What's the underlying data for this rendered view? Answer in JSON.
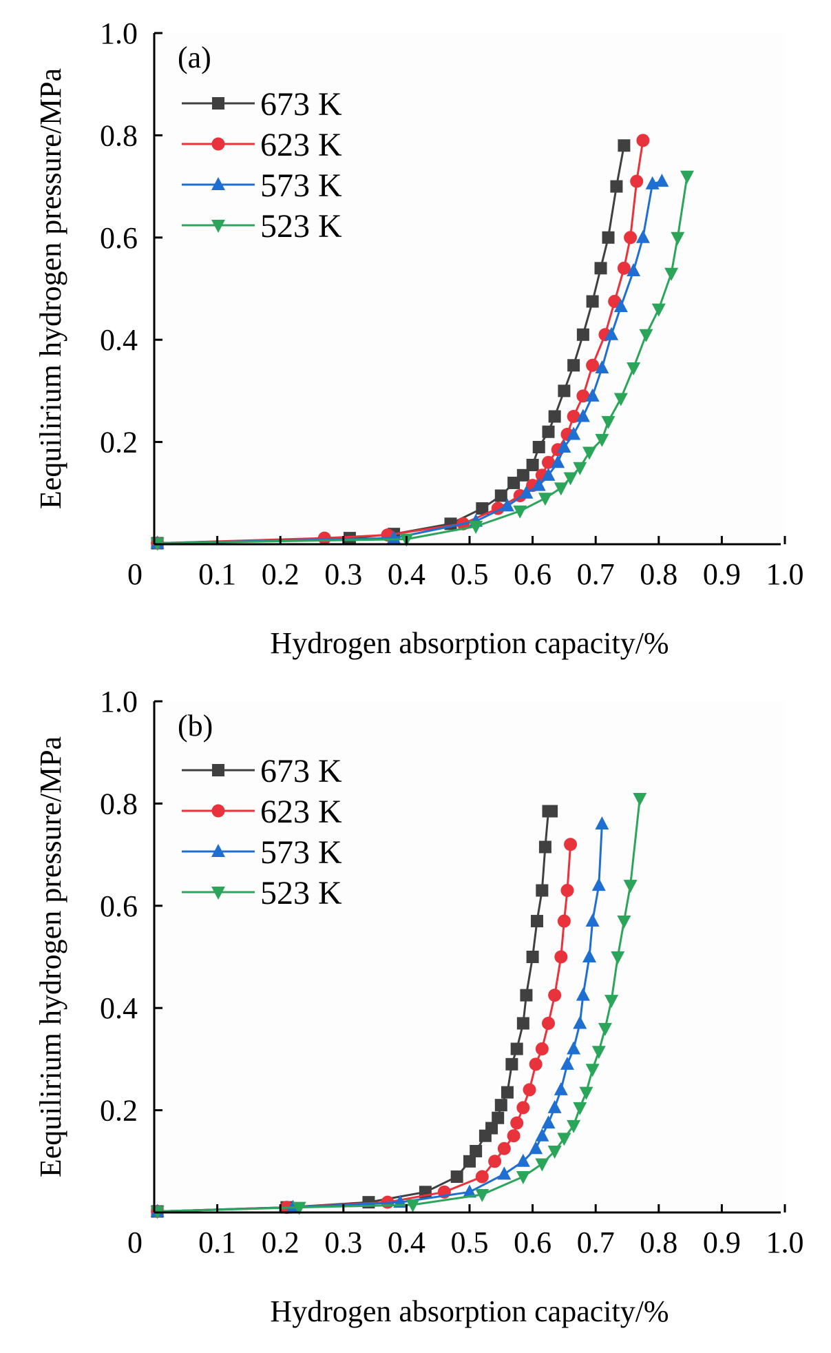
{
  "chart_data": [
    {
      "type": "line",
      "panel_label": "(a)",
      "xlabel": "Hydrogen absorption capacity/%",
      "ylabel": "Eequilirium hydrogen pressure/MPa",
      "xlim": [
        0,
        1.0
      ],
      "ylim": [
        0,
        1.0
      ],
      "x_ticks": [
        0,
        0.1,
        0.2,
        0.3,
        0.4,
        0.5,
        0.6,
        0.7,
        0.8,
        0.9,
        1.0
      ],
      "x_tick_labels": [
        "0",
        "0.1",
        "0.2",
        "0.3",
        "0.4",
        "0.5",
        "0.6",
        "0.7",
        "0.8",
        "0.9",
        "1.0"
      ],
      "y_ticks": [
        0.2,
        0.4,
        0.6,
        0.8,
        1.0
      ],
      "y_tick_labels": [
        "0.2",
        "0.4",
        "0.6",
        "0.8",
        "1.0"
      ],
      "legend_position": "top-left",
      "series": [
        {
          "name": "673 K",
          "color": "#404040",
          "marker": "square",
          "x": [
            0.005,
            0.31,
            0.38,
            0.47,
            0.52,
            0.55,
            0.57,
            0.585,
            0.6,
            0.61,
            0.625,
            0.635,
            0.65,
            0.665,
            0.68,
            0.695,
            0.708,
            0.72,
            0.733,
            0.745
          ],
          "y": [
            0.002,
            0.012,
            0.02,
            0.04,
            0.07,
            0.095,
            0.12,
            0.135,
            0.155,
            0.19,
            0.22,
            0.25,
            0.3,
            0.35,
            0.41,
            0.475,
            0.54,
            0.6,
            0.7,
            0.78
          ]
        },
        {
          "name": "623 K",
          "color": "#e8323c",
          "marker": "circle",
          "x": [
            0.005,
            0.27,
            0.37,
            0.49,
            0.545,
            0.58,
            0.6,
            0.615,
            0.625,
            0.64,
            0.655,
            0.665,
            0.68,
            0.695,
            0.715,
            0.73,
            0.745,
            0.755,
            0.765,
            0.775
          ],
          "y": [
            0.002,
            0.012,
            0.018,
            0.04,
            0.07,
            0.095,
            0.115,
            0.135,
            0.16,
            0.185,
            0.215,
            0.25,
            0.29,
            0.35,
            0.41,
            0.475,
            0.54,
            0.6,
            0.71,
            0.79
          ]
        },
        {
          "name": "573 K",
          "color": "#1e6fd1",
          "marker": "triangle-up",
          "x": [
            0.005,
            0.38,
            0.51,
            0.56,
            0.59,
            0.61,
            0.625,
            0.64,
            0.65,
            0.665,
            0.68,
            0.695,
            0.71,
            0.725,
            0.74,
            0.76,
            0.775,
            0.79,
            0.805
          ],
          "y": [
            0.002,
            0.012,
            0.045,
            0.075,
            0.1,
            0.115,
            0.135,
            0.16,
            0.19,
            0.215,
            0.25,
            0.29,
            0.345,
            0.41,
            0.465,
            0.535,
            0.6,
            0.705,
            0.71
          ]
        },
        {
          "name": "523 K",
          "color": "#2aa55a",
          "marker": "triangle-down",
          "x": [
            0.005,
            0.4,
            0.51,
            0.58,
            0.62,
            0.645,
            0.66,
            0.675,
            0.69,
            0.71,
            0.72,
            0.74,
            0.76,
            0.78,
            0.8,
            0.82,
            0.83,
            0.845
          ],
          "y": [
            0.002,
            0.01,
            0.035,
            0.065,
            0.09,
            0.11,
            0.13,
            0.15,
            0.18,
            0.205,
            0.24,
            0.285,
            0.345,
            0.41,
            0.46,
            0.53,
            0.6,
            0.72
          ]
        }
      ]
    },
    {
      "type": "line",
      "panel_label": "(b)",
      "xlabel": "Hydrogen absorption capacity/%",
      "ylabel": "Eequilirium hydrogen pressure/MPa",
      "xlim": [
        0,
        1.0
      ],
      "ylim": [
        0,
        1.0
      ],
      "x_ticks": [
        0,
        0.1,
        0.2,
        0.3,
        0.4,
        0.5,
        0.6,
        0.7,
        0.8,
        0.9,
        1.0
      ],
      "x_tick_labels": [
        "0",
        "0.1",
        "0.2",
        "0.3",
        "0.4",
        "0.5",
        "0.6",
        "0.7",
        "0.8",
        "0.9",
        "1.0"
      ],
      "y_ticks": [
        0.2,
        0.4,
        0.6,
        0.8,
        1.0
      ],
      "y_tick_labels": [
        "0.2",
        "0.4",
        "0.6",
        "0.8",
        "1.0"
      ],
      "legend_position": "top-left",
      "series": [
        {
          "name": "673 K",
          "color": "#404040",
          "marker": "square",
          "x": [
            0.005,
            0.21,
            0.34,
            0.43,
            0.48,
            0.5,
            0.51,
            0.525,
            0.535,
            0.545,
            0.55,
            0.56,
            0.567,
            0.575,
            0.585,
            0.59,
            0.6,
            0.607,
            0.615,
            0.62,
            0.625,
            0.63
          ],
          "y": [
            0.002,
            0.01,
            0.02,
            0.04,
            0.07,
            0.1,
            0.12,
            0.15,
            0.165,
            0.185,
            0.21,
            0.235,
            0.29,
            0.32,
            0.37,
            0.425,
            0.5,
            0.57,
            0.63,
            0.715,
            0.785,
            0.785
          ]
        },
        {
          "name": "623 K",
          "color": "#e8323c",
          "marker": "circle",
          "x": [
            0.005,
            0.21,
            0.37,
            0.46,
            0.52,
            0.54,
            0.555,
            0.57,
            0.575,
            0.585,
            0.595,
            0.605,
            0.615,
            0.625,
            0.635,
            0.645,
            0.65,
            0.655,
            0.66
          ],
          "y": [
            0.002,
            0.01,
            0.02,
            0.04,
            0.07,
            0.1,
            0.125,
            0.15,
            0.175,
            0.205,
            0.24,
            0.29,
            0.32,
            0.37,
            0.425,
            0.5,
            0.57,
            0.63,
            0.72
          ]
        },
        {
          "name": "573 K",
          "color": "#1e6fd1",
          "marker": "triangle-up",
          "x": [
            0.005,
            0.22,
            0.39,
            0.5,
            0.555,
            0.585,
            0.605,
            0.615,
            0.625,
            0.635,
            0.645,
            0.655,
            0.665,
            0.675,
            0.68,
            0.69,
            0.695,
            0.705,
            0.71
          ],
          "y": [
            0.002,
            0.01,
            0.02,
            0.04,
            0.075,
            0.1,
            0.125,
            0.15,
            0.175,
            0.205,
            0.24,
            0.29,
            0.32,
            0.37,
            0.425,
            0.5,
            0.57,
            0.64,
            0.76
          ]
        },
        {
          "name": "523 K",
          "color": "#2aa55a",
          "marker": "triangle-down",
          "x": [
            0.005,
            0.23,
            0.41,
            0.52,
            0.585,
            0.615,
            0.635,
            0.65,
            0.665,
            0.675,
            0.685,
            0.695,
            0.705,
            0.715,
            0.725,
            0.735,
            0.745,
            0.755,
            0.77
          ],
          "y": [
            0.002,
            0.01,
            0.015,
            0.035,
            0.07,
            0.095,
            0.12,
            0.145,
            0.17,
            0.205,
            0.235,
            0.28,
            0.315,
            0.36,
            0.415,
            0.5,
            0.57,
            0.64,
            0.81
          ]
        }
      ]
    }
  ]
}
